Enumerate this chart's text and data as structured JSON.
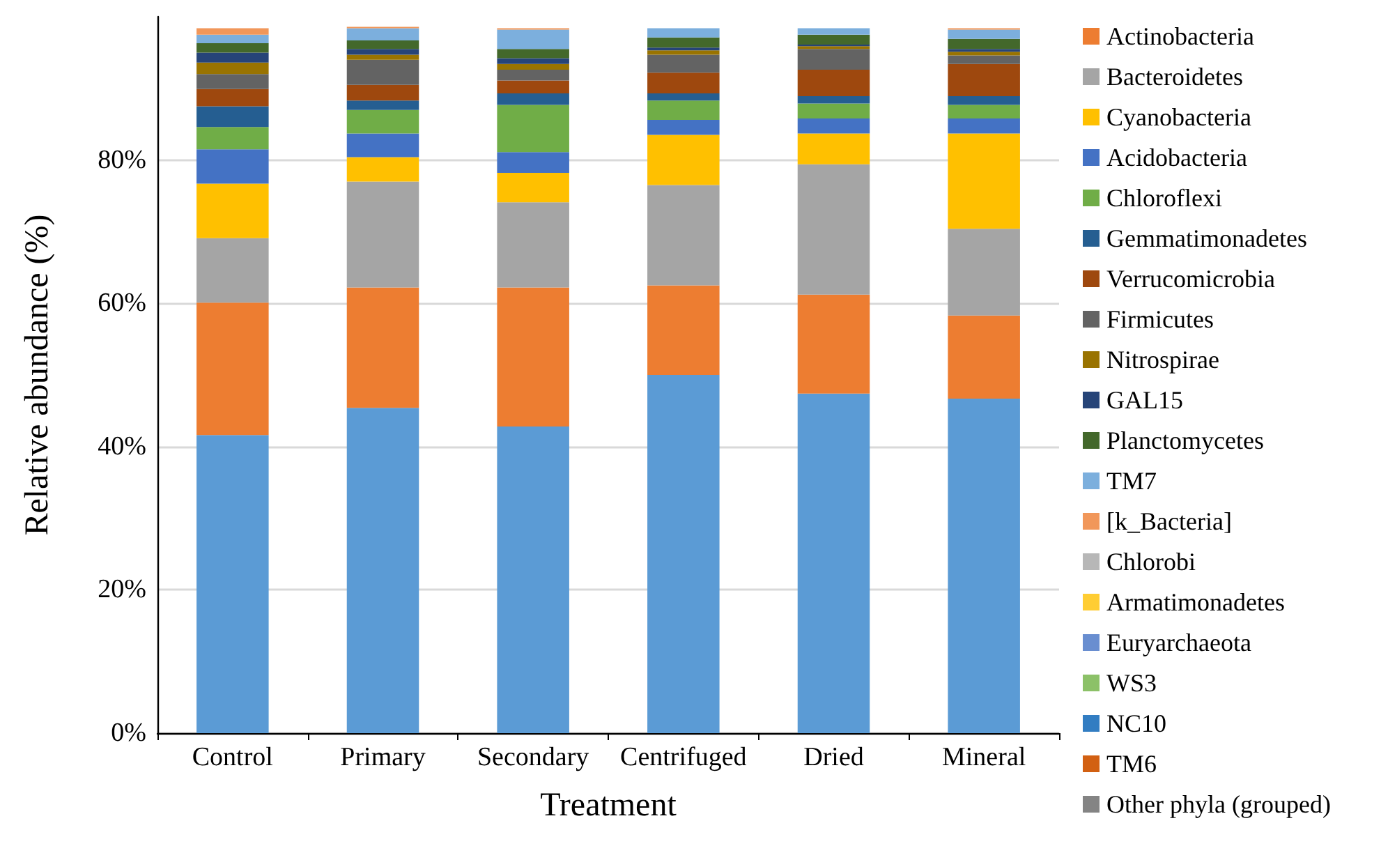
{
  "chart_data": {
    "type": "bar",
    "stacked": true,
    "xlabel": "Treatment",
    "ylabel": "Relative abundance (%)",
    "categories": [
      "Control",
      "Primary",
      "Secondary",
      "Centrifuged",
      "Dried",
      "Mineral"
    ],
    "ylim": [
      0,
      100
    ],
    "yticks": [
      {
        "value": 0,
        "label": "0%"
      },
      {
        "value": 20,
        "label": "20%"
      },
      {
        "value": 40,
        "label": "40%"
      },
      {
        "value": 60,
        "label": "60%"
      },
      {
        "value": 80,
        "label": "80%"
      }
    ],
    "grid": "y",
    "legend": "right",
    "series": [
      {
        "color": "#5b9bd5",
        "values": [
          41.6,
          45.4,
          42.8,
          50.0,
          47.4,
          46.7
        ]
      },
      {
        "name": "Actinobacteria",
        "color": "#ed7d31",
        "values": [
          18.5,
          16.8,
          19.4,
          12.5,
          13.8,
          11.6
        ]
      },
      {
        "name": "Bacteroidetes",
        "color": "#a5a5a5",
        "values": [
          9.0,
          14.8,
          11.9,
          14.0,
          18.2,
          12.1
        ]
      },
      {
        "name": "Cyanobacteria",
        "color": "#ffc000",
        "values": [
          7.6,
          3.4,
          4.1,
          7.0,
          4.3,
          13.3
        ]
      },
      {
        "name": "Acidobacteria",
        "color": "#4472c4",
        "values": [
          4.8,
          3.3,
          2.9,
          2.1,
          2.1,
          2.1
        ]
      },
      {
        "name": "Chloroflexi",
        "color": "#70ad47",
        "values": [
          3.1,
          3.3,
          6.6,
          2.7,
          2.1,
          1.9
        ]
      },
      {
        "name": "Gemmatimonadetes",
        "color": "#255e91",
        "values": [
          2.9,
          1.3,
          1.6,
          1.0,
          1.0,
          1.2
        ]
      },
      {
        "name": "Verrucomicrobia",
        "color": "#9e480e",
        "values": [
          2.4,
          2.2,
          1.8,
          2.9,
          3.7,
          4.5
        ]
      },
      {
        "name": "Firmicutes",
        "color": "#636363",
        "values": [
          2.1,
          3.5,
          1.5,
          2.5,
          2.9,
          1.2
        ]
      },
      {
        "name": "Nitrospirae",
        "color": "#997300",
        "values": [
          1.6,
          0.7,
          0.8,
          0.6,
          0.4,
          0.5
        ]
      },
      {
        "name": "GAL15",
        "color": "#264478",
        "values": [
          1.4,
          0.8,
          0.8,
          0.4,
          0.2,
          0.4
        ]
      },
      {
        "name": "Planctomycetes",
        "color": "#43682b",
        "values": [
          1.3,
          1.2,
          1.3,
          1.4,
          1.4,
          1.4
        ]
      },
      {
        "name": "TM7",
        "color": "#7cafdd",
        "values": [
          1.2,
          1.7,
          2.7,
          1.3,
          0.9,
          1.3
        ]
      },
      {
        "name": "[k_Bacteria]",
        "color": "#f1975a",
        "values": [
          0.9,
          0.2,
          0.2,
          0,
          0,
          0.2
        ]
      },
      {
        "name": "Chlorobi",
        "color": "#b7b7b7",
        "values": [
          0,
          0,
          0,
          0,
          0,
          0
        ]
      },
      {
        "name": "Armatimonadetes",
        "color": "#ffcd33",
        "values": [
          0,
          0,
          0,
          0,
          0,
          0
        ]
      },
      {
        "name": "Euryarchaeota",
        "color": "#698ed0",
        "values": [
          0,
          0,
          0,
          0,
          0,
          0
        ]
      },
      {
        "name": "WS3",
        "color": "#8cc168",
        "values": [
          0,
          0,
          0,
          0,
          0,
          0
        ]
      },
      {
        "name": "NC10",
        "color": "#327dc2",
        "values": [
          0,
          0,
          0,
          0,
          0,
          0
        ]
      },
      {
        "name": "TM6",
        "color": "#d26012",
        "values": [
          0,
          0,
          0,
          0,
          0,
          0
        ]
      },
      {
        "name": "Other phyla (grouped)",
        "color": "#848484",
        "values": [
          0,
          0,
          0,
          0,
          0,
          0
        ]
      }
    ]
  }
}
